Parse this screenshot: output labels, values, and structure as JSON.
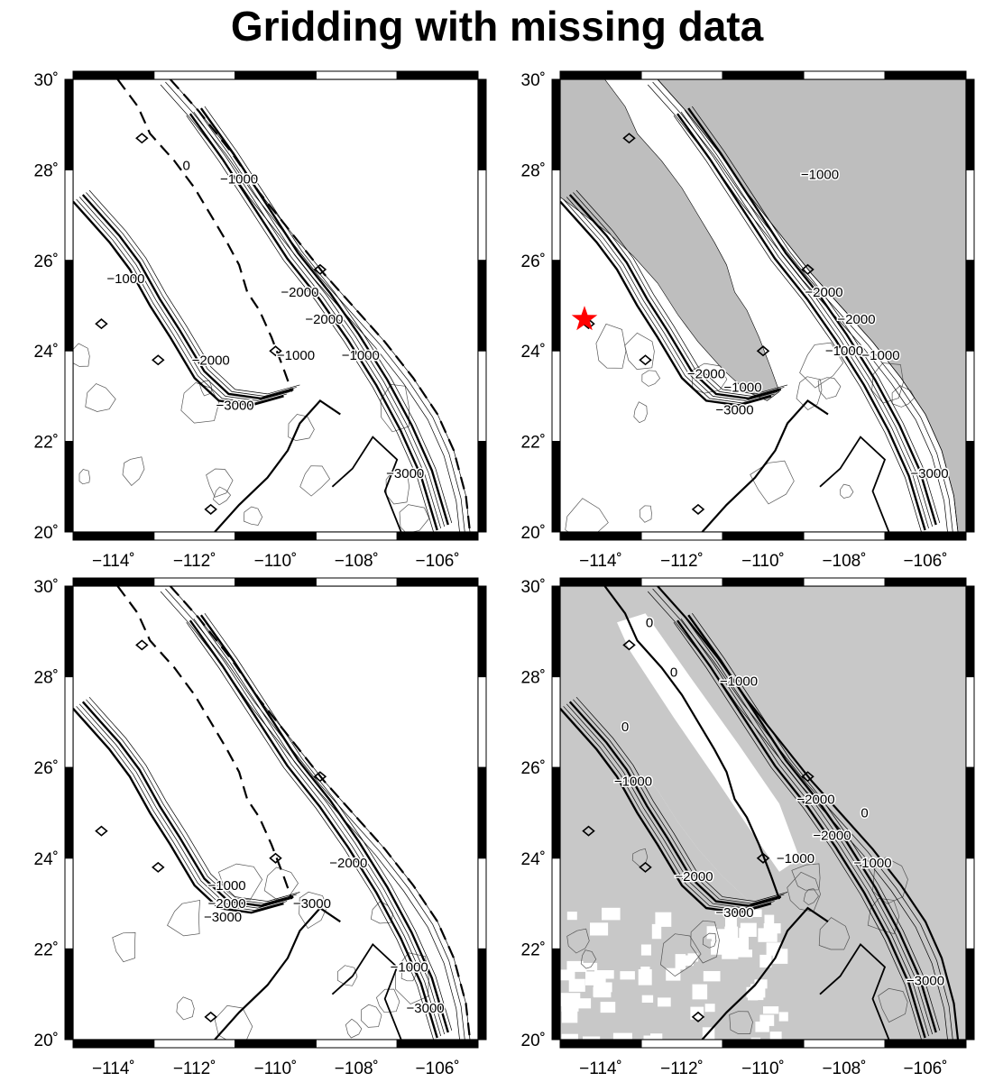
{
  "title": "Gridding with missing data",
  "axes": {
    "lon_ticks": [
      -114,
      -112,
      -110,
      -108,
      -106
    ],
    "lat_ticks": [
      30,
      28,
      26,
      24,
      22,
      20
    ],
    "lon_range": [
      -115,
      -105
    ],
    "lat_range": [
      20,
      30
    ],
    "lon_labels": [
      "−114˚",
      "−112˚",
      "−110˚",
      "−108˚",
      "−106˚"
    ],
    "lat_labels": [
      "30˚",
      "28˚",
      "26˚",
      "24˚",
      "22˚",
      "20˚"
    ]
  },
  "contour_levels": [
    0,
    -1000,
    -2000,
    -3000
  ],
  "colors": {
    "land": "#bebebe",
    "coverage_mask": "#c8c8c8",
    "marker": "#ff0000",
    "frame": "#000000"
  },
  "panels": [
    {
      "id": "top-left",
      "land_fill": false,
      "mask_fill": false,
      "labels": [
        {
          "text": "0",
          "lon": -112.2,
          "lat": 28.0
        },
        {
          "text": "−1000",
          "lon": -110.9,
          "lat": 27.7
        },
        {
          "text": "−1000",
          "lon": -113.7,
          "lat": 25.5
        },
        {
          "text": "−2000",
          "lon": -109.4,
          "lat": 25.2
        },
        {
          "text": "−2000",
          "lon": -108.8,
          "lat": 24.6
        },
        {
          "text": "−1000",
          "lon": -109.5,
          "lat": 23.8
        },
        {
          "text": "−1000",
          "lon": -107.9,
          "lat": 23.8
        },
        {
          "text": "−2000",
          "lon": -111.6,
          "lat": 23.7
        },
        {
          "text": "−3000",
          "lon": -111.0,
          "lat": 22.7
        },
        {
          "text": "−3000",
          "lon": -106.8,
          "lat": 21.2
        }
      ]
    },
    {
      "id": "top-right",
      "land_fill": true,
      "mask_fill": false,
      "marker": {
        "shape": "star-icon",
        "lon": -114.4,
        "lat": 24.7
      },
      "labels": [
        {
          "text": "−1000",
          "lon": -108.6,
          "lat": 27.8
        },
        {
          "text": "−2000",
          "lon": -108.5,
          "lat": 25.2
        },
        {
          "text": "−2000",
          "lon": -107.7,
          "lat": 24.6
        },
        {
          "text": "−1000",
          "lon": -108.0,
          "lat": 23.9
        },
        {
          "text": "−1000",
          "lon": -107.1,
          "lat": 23.8
        },
        {
          "text": "−2000",
          "lon": -111.4,
          "lat": 23.4
        },
        {
          "text": "−1000",
          "lon": -110.5,
          "lat": 23.1
        },
        {
          "text": "−3000",
          "lon": -110.7,
          "lat": 22.6
        },
        {
          "text": "−3000",
          "lon": -105.9,
          "lat": 21.2
        }
      ]
    },
    {
      "id": "bottom-left",
      "land_fill": false,
      "mask_fill": false,
      "labels": [
        {
          "text": "−1000",
          "lon": -111.2,
          "lat": 23.3
        },
        {
          "text": "−2000",
          "lon": -111.2,
          "lat": 22.9
        },
        {
          "text": "−3000",
          "lon": -111.3,
          "lat": 22.6
        },
        {
          "text": "−3000",
          "lon": -109.1,
          "lat": 22.9
        },
        {
          "text": "−2000",
          "lon": -108.2,
          "lat": 23.8
        },
        {
          "text": "−1000",
          "lon": -106.7,
          "lat": 21.5
        },
        {
          "text": "−3000",
          "lon": -106.3,
          "lat": 20.6
        }
      ]
    },
    {
      "id": "bottom-right",
      "land_fill": false,
      "mask_fill": true,
      "labels": [
        {
          "text": "0",
          "lon": -112.8,
          "lat": 29.1
        },
        {
          "text": "0",
          "lon": -112.2,
          "lat": 28.0
        },
        {
          "text": "0",
          "lon": -113.4,
          "lat": 26.8
        },
        {
          "text": "−1000",
          "lon": -110.6,
          "lat": 27.8
        },
        {
          "text": "−1000",
          "lon": -113.2,
          "lat": 25.6
        },
        {
          "text": "−2000",
          "lon": -108.7,
          "lat": 25.2
        },
        {
          "text": "0",
          "lon": -107.5,
          "lat": 24.9
        },
        {
          "text": "−2000",
          "lon": -108.3,
          "lat": 24.4
        },
        {
          "text": "−1000",
          "lon": -109.2,
          "lat": 23.9
        },
        {
          "text": "−1000",
          "lon": -107.3,
          "lat": 23.8
        },
        {
          "text": "−2000",
          "lon": -111.7,
          "lat": 23.5
        },
        {
          "text": "−3000",
          "lon": -110.7,
          "lat": 22.7
        },
        {
          "text": "−3000",
          "lon": -106.0,
          "lat": 21.2
        }
      ]
    }
  ]
}
